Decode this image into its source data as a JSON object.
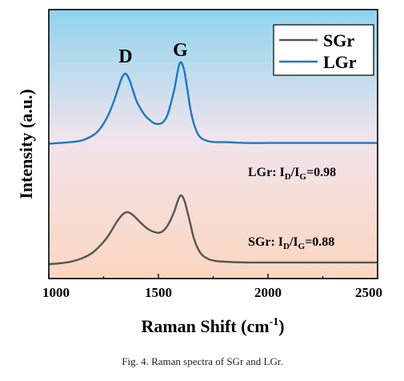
{
  "chart_data": {
    "type": "line",
    "xlabel_main": "Raman Shift (cm",
    "xlabel_sup": "-1",
    "xlabel_end": ")",
    "ylabel": "Intensity (a.u.)",
    "xlim": [
      1000,
      2500
    ],
    "x_ticks": [
      "1000",
      "1500",
      "2000",
      "2500"
    ],
    "y_ticks_labeled": false,
    "grid": false,
    "legend_position": "top-right",
    "background": "vertical gradient from light blue (top) to light peach (bottom)",
    "peak_labels": [
      {
        "text": "D",
        "x": 1350
      },
      {
        "text": "G",
        "x": 1600
      }
    ],
    "annotations": [
      {
        "series": "LGr",
        "prefix": "LGr: I",
        "sub1": "D",
        "mid": "/I",
        "sub2": "G",
        "value": "=0.98"
      },
      {
        "series": "SGr",
        "prefix": "SGr: I",
        "sub1": "D",
        "mid": "/I",
        "sub2": "G",
        "value": "=0.88"
      }
    ],
    "series": [
      {
        "name": "SGr",
        "color": "#555555",
        "x": [
          1000,
          1050,
          1100,
          1150,
          1200,
          1250,
          1280,
          1300,
          1320,
          1340,
          1355,
          1370,
          1390,
          1420,
          1450,
          1480,
          1500,
          1520,
          1540,
          1560,
          1575,
          1590,
          1600,
          1610,
          1620,
          1630,
          1645,
          1660,
          1680,
          1700,
          1730,
          1760,
          1800,
          1900,
          2000,
          2100,
          2200,
          2300,
          2400,
          2500
        ],
        "values": [
          0.0,
          0.01,
          0.03,
          0.07,
          0.14,
          0.27,
          0.38,
          0.47,
          0.55,
          0.61,
          0.63,
          0.62,
          0.58,
          0.5,
          0.43,
          0.39,
          0.38,
          0.4,
          0.46,
          0.56,
          0.66,
          0.78,
          0.83,
          0.82,
          0.76,
          0.66,
          0.5,
          0.33,
          0.19,
          0.11,
          0.06,
          0.04,
          0.03,
          0.02,
          0.02,
          0.02,
          0.02,
          0.02,
          0.02,
          0.02
        ]
      },
      {
        "name": "LGr",
        "color": "#1f77c4",
        "x": [
          1000,
          1050,
          1100,
          1150,
          1200,
          1230,
          1260,
          1280,
          1300,
          1315,
          1330,
          1342,
          1350,
          1358,
          1370,
          1385,
          1400,
          1420,
          1440,
          1460,
          1480,
          1500,
          1520,
          1540,
          1560,
          1575,
          1585,
          1595,
          1602,
          1610,
          1620,
          1632,
          1645,
          1660,
          1680,
          1700,
          1730,
          1760,
          1800,
          1900,
          2000,
          2100,
          2200,
          2300,
          2400,
          2500
        ],
        "values": [
          1.46,
          1.47,
          1.48,
          1.5,
          1.56,
          1.63,
          1.75,
          1.86,
          2.0,
          2.12,
          2.24,
          2.3,
          2.31,
          2.29,
          2.22,
          2.1,
          1.98,
          1.88,
          1.8,
          1.75,
          1.71,
          1.7,
          1.72,
          1.8,
          1.98,
          2.15,
          2.3,
          2.42,
          2.45,
          2.42,
          2.32,
          2.12,
          1.9,
          1.72,
          1.58,
          1.52,
          1.49,
          1.48,
          1.48,
          1.47,
          1.47,
          1.47,
          1.47,
          1.47,
          1.47,
          1.47
        ]
      }
    ]
  },
  "caption": "Fig. 4.  Raman spectra of SGr and LGr."
}
